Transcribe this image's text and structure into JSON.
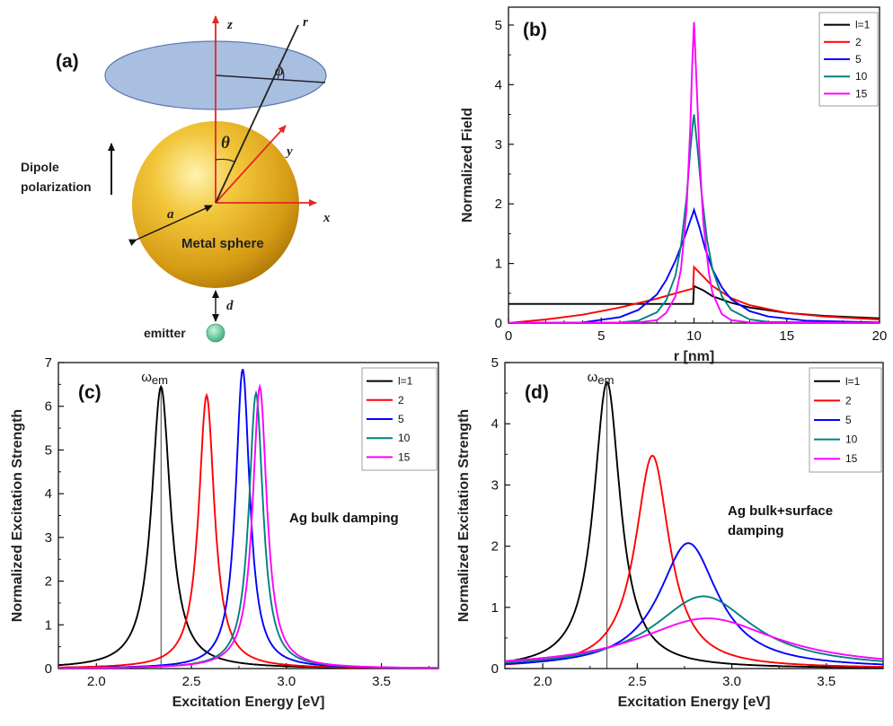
{
  "panel_a": {
    "label": "(a)",
    "z_label": "z",
    "x_label": "x",
    "y_label": "y",
    "r_label": "r",
    "phi_label": "φ",
    "theta_label": "θ",
    "a_label": "a",
    "d_label": "d",
    "dipole_label_1": "Dipole",
    "dipole_label_2": "polarization",
    "sphere_label": "Metal sphere",
    "emitter_label": "emitter",
    "colors": {
      "sphere": "#e0a81c",
      "disk": "#a9bfe0",
      "axes": "#e82424",
      "emitter": "#5fc49a"
    }
  },
  "chart_data": [
    {
      "panel": "(b)",
      "type": "line",
      "xlabel": "r  [nm]",
      "ylabel": "Normalized Field",
      "xlim": [
        0,
        20
      ],
      "ylim": [
        0,
        5.3
      ],
      "xticks": [
        "0",
        "5",
        "10",
        "15",
        "20"
      ],
      "yticks": [
        "0",
        "1",
        "2",
        "3",
        "4",
        "5"
      ],
      "legend_position": "top-right",
      "legend": [
        "l=1",
        "2",
        "5",
        "10",
        "15"
      ],
      "series": [
        {
          "name": "l=1",
          "color": "#000000",
          "x": [
            0,
            5,
            9.95,
            10,
            10.5,
            11,
            12,
            13,
            15,
            17,
            20
          ],
          "y": [
            0.32,
            0.32,
            0.32,
            0.62,
            0.55,
            0.45,
            0.34,
            0.26,
            0.17,
            0.12,
            0.08
          ]
        },
        {
          "name": "2",
          "color": "#ff0000",
          "x": [
            0,
            2,
            4,
            6,
            8,
            9,
            9.95,
            10,
            10.5,
            11,
            12,
            13,
            15,
            17,
            20
          ],
          "y": [
            0,
            0.06,
            0.14,
            0.26,
            0.41,
            0.5,
            0.58,
            0.94,
            0.78,
            0.62,
            0.42,
            0.3,
            0.17,
            0.11,
            0.06
          ]
        },
        {
          "name": "5",
          "color": "#0000ff",
          "x": [
            0,
            4,
            6,
            7,
            8,
            8.5,
            9,
            9.5,
            9.8,
            9.95,
            10,
            10.3,
            10.6,
            11,
            11.5,
            12,
            13,
            14,
            16,
            20
          ],
          "y": [
            0,
            0.01,
            0.1,
            0.22,
            0.48,
            0.72,
            1.05,
            1.45,
            1.72,
            1.85,
            1.9,
            1.6,
            1.25,
            0.9,
            0.6,
            0.4,
            0.2,
            0.11,
            0.04,
            0.01
          ]
        },
        {
          "name": "10",
          "color": "#008080",
          "x": [
            0,
            6,
            7,
            8,
            8.5,
            9,
            9.3,
            9.6,
            9.8,
            9.95,
            10,
            10.2,
            10.4,
            10.7,
            11,
            11.5,
            12,
            13,
            14,
            20
          ],
          "y": [
            0,
            0.01,
            0.04,
            0.18,
            0.38,
            0.8,
            1.3,
            2.1,
            2.9,
            3.4,
            3.5,
            2.9,
            2.2,
            1.4,
            0.9,
            0.45,
            0.22,
            0.06,
            0.02,
            0
          ]
        },
        {
          "name": "15",
          "color": "#ff00ff",
          "x": [
            0,
            7,
            8,
            8.5,
            9,
            9.3,
            9.6,
            9.8,
            9.9,
            10,
            10.1,
            10.3,
            10.5,
            10.8,
            11,
            11.5,
            12,
            13,
            20
          ],
          "y": [
            0,
            0.01,
            0.05,
            0.17,
            0.45,
            0.9,
            1.9,
            3.3,
            4.3,
            5.05,
            4.3,
            2.8,
            1.7,
            0.85,
            0.5,
            0.15,
            0.05,
            0.01,
            0
          ]
        }
      ]
    },
    {
      "panel": "(c)",
      "type": "line",
      "xlabel": "Excitation Energy [eV]",
      "ylabel": "Normalized Excitation Strength",
      "xlim": [
        1.8,
        3.8
      ],
      "ylim": [
        0,
        7
      ],
      "xticks": [
        "2.0",
        "2.5",
        "3.0",
        "3.5"
      ],
      "yticks": [
        "0",
        "1",
        "2",
        "3",
        "4",
        "5",
        "6",
        "7"
      ],
      "legend_position": "top-right",
      "legend": [
        "l=1",
        "2",
        "5",
        "10",
        "15"
      ],
      "annotation": "Ag bulk damping",
      "marker_label": "ω",
      "marker_sub": "em",
      "marker_x": 2.34,
      "series": [
        {
          "name": "l=1",
          "color": "#000000",
          "peak_x": 2.34,
          "peak_y": 6.45,
          "hwhm": 0.06
        },
        {
          "name": "2",
          "color": "#ff0000",
          "peak_x": 2.58,
          "peak_y": 6.25,
          "hwhm": 0.05
        },
        {
          "name": "5",
          "color": "#0000ff",
          "peak_x": 2.77,
          "peak_y": 6.85,
          "hwhm": 0.045
        },
        {
          "name": "10",
          "color": "#008080",
          "peak_x": 2.84,
          "peak_y": 6.3,
          "hwhm": 0.045
        },
        {
          "name": "15",
          "color": "#ff00ff",
          "peak_x": 2.86,
          "peak_y": 6.45,
          "hwhm": 0.045
        }
      ]
    },
    {
      "panel": "(d)",
      "type": "line",
      "xlabel": "Excitation Energy [eV]",
      "ylabel": "Normalized Excitation Strength",
      "xlim": [
        1.8,
        3.8
      ],
      "ylim": [
        0,
        5
      ],
      "xticks": [
        "2.0",
        "2.5",
        "3.0",
        "3.5"
      ],
      "yticks": [
        "0",
        "1",
        "2",
        "3",
        "4",
        "5"
      ],
      "legend_position": "top-right",
      "legend": [
        "l=1",
        "2",
        "5",
        "10",
        "15"
      ],
      "annotation_1": "Ag bulk+surface",
      "annotation_2": "damping",
      "marker_label": "ω",
      "marker_sub": "em",
      "marker_x": 2.34,
      "series": [
        {
          "name": "l=1",
          "color": "#000000",
          "peak_x": 2.34,
          "peak_y": 4.68,
          "hwhm": 0.085
        },
        {
          "name": "2",
          "color": "#ff0000",
          "peak_x": 2.58,
          "peak_y": 3.48,
          "hwhm": 0.11
        },
        {
          "name": "5",
          "color": "#0000ff",
          "peak_x": 2.77,
          "peak_y": 2.05,
          "hwhm": 0.19
        },
        {
          "name": "10",
          "color": "#008080",
          "peak_x": 2.85,
          "peak_y": 1.18,
          "hwhm": 0.32
        },
        {
          "name": "15",
          "color": "#ff00ff",
          "peak_x": 2.87,
          "peak_y": 0.82,
          "hwhm": 0.45
        }
      ]
    }
  ]
}
